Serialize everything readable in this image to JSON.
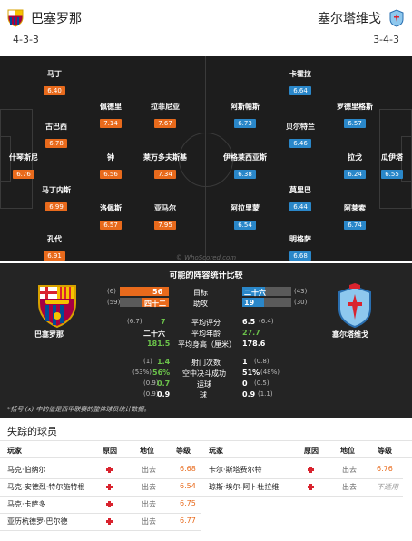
{
  "header": {
    "home_name": "巴塞罗那",
    "away_name": "塞尔塔维戈",
    "home_formation": "4-3-3",
    "away_formation": "3-4-3"
  },
  "pitch": {
    "watermark": "© WhoScored.com",
    "home_players": [
      {
        "name": "马丁",
        "rating": "6.40"
      },
      {
        "name": "佩德里",
        "rating": "7.14"
      },
      {
        "name": "拉菲尼亚",
        "rating": "7.67"
      },
      {
        "name": "古巴西",
        "rating": "6.78"
      },
      {
        "name": "什琴斯尼",
        "rating": "6.76"
      },
      {
        "name": "钟",
        "rating": "6.56"
      },
      {
        "name": "莱万多夫斯基",
        "rating": "7.34"
      },
      {
        "name": "马丁内斯",
        "rating": "6.99"
      },
      {
        "name": "洛佩斯",
        "rating": "6.57"
      },
      {
        "name": "亚马尔",
        "rating": "7.95"
      },
      {
        "name": "孔代",
        "rating": "6.91"
      }
    ],
    "away_players": [
      {
        "name": "卡霍拉",
        "rating": "6.64"
      },
      {
        "name": "阿斯帕斯",
        "rating": "6.73"
      },
      {
        "name": "罗德里格斯",
        "rating": "6.57"
      },
      {
        "name": "贝尔特兰",
        "rating": "6.46"
      },
      {
        "name": "伊格莱西亚斯",
        "rating": "6.38"
      },
      {
        "name": "拉戈",
        "rating": "6.24"
      },
      {
        "name": "瓜伊塔",
        "rating": "6.55"
      },
      {
        "name": "莫里巴",
        "rating": "6.44"
      },
      {
        "name": "阿拉里蒙",
        "rating": "6.54"
      },
      {
        "name": "阿莱索",
        "rating": "6.74"
      },
      {
        "name": "明格萨",
        "rating": "6.68"
      }
    ]
  },
  "compare": {
    "title": "可能的阵容统计比较",
    "home_team": "巴塞罗那",
    "away_team": "塞尔塔维戈",
    "bars": [
      {
        "label": "目标",
        "home_rank": "(6)",
        "home_val": "56",
        "away_val": "二十六",
        "away_rank": "(43)",
        "home_frac": 1.0,
        "away_frac": 0.46
      },
      {
        "label": "助攻",
        "home_rank": "(59)",
        "home_val": "四十二",
        "away_val": "19",
        "away_rank": "(30)",
        "home_frac": 1.0,
        "away_frac": 0.45
      }
    ],
    "stats": [
      {
        "label": "平均评分",
        "home_rank": "(6.7)",
        "home_val": "7",
        "away_val": "6.5",
        "away_rank": "(6.4)"
      },
      {
        "label": "平均年龄",
        "home_rank": "",
        "home_val": "二十六",
        "away_val": "27.7",
        "away_rank": ""
      },
      {
        "label": "平均身高（厘米）",
        "home_rank": "",
        "home_val": "181.5",
        "away_val": "178.6",
        "away_rank": ""
      }
    ],
    "stats2": [
      {
        "label": "射门次数",
        "home_rank": "(1)",
        "home_val": "1.4",
        "away_val": "1",
        "away_rank": "(0.8)"
      },
      {
        "label": "空中决斗成功",
        "home_rank": "(53%)",
        "home_val": "56%",
        "away_val": "51%",
        "away_rank": "(48%)"
      },
      {
        "label": "运球",
        "home_rank": "(0.9)",
        "home_val": "0.7",
        "away_val": "0",
        "away_rank": "(0.5)"
      },
      {
        "label": "球",
        "home_rank": "(0.9)",
        "home_val": "0.9",
        "away_val": "0.9",
        "away_rank": "(1.1)"
      }
    ],
    "note": "*括号 (x) 中的值是西甲联赛的整体球员统计数据。"
  },
  "missing": {
    "title": "失踪的球员",
    "headers": {
      "player": "玩家",
      "reason": "原因",
      "status": "地位",
      "rating": "等级"
    },
    "left": [
      {
        "player": "马克·伯纳尔",
        "status": "出去",
        "rating": "6.68"
      },
      {
        "player": "马克-安德烈·特尔施特根",
        "status": "出去",
        "rating": "6.54"
      },
      {
        "player": "马克·卡萨多",
        "status": "出去",
        "rating": "6.75"
      },
      {
        "player": "亚历杭德罗·巴尔德",
        "status": "出去",
        "rating": "6.77"
      }
    ],
    "right": [
      {
        "player": "卡尔·斯塔费尔特",
        "status": "出去",
        "rating": "6.76"
      },
      {
        "player": "琼斯·埃尔-阿卜杜拉维",
        "status": "出去",
        "rating": "不适用"
      }
    ],
    "colors": {
      "accent": "#e86a1c",
      "away": "#2a87c9",
      "injury": "#d9232e"
    }
  }
}
